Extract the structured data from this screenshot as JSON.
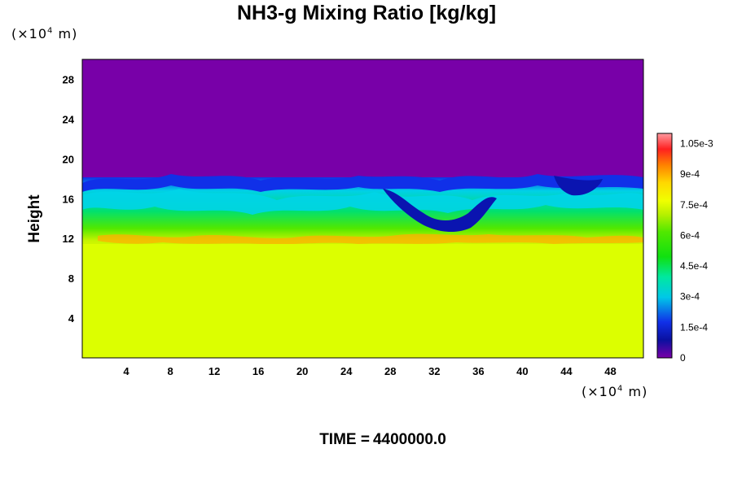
{
  "chart_data": {
    "type": "heatmap",
    "title": "NH3-g Mixing Ratio [kg/kg]",
    "ylabel": "Height",
    "x_unit_label": "(×10",
    "x_unit_exp": "4",
    "x_unit_tail": " m)",
    "y_unit_label": "(×10",
    "y_unit_exp": "4",
    "y_unit_tail": " m)",
    "xlim": [
      0,
      51
    ],
    "ylim": [
      0,
      30
    ],
    "x_ticks": [
      "4",
      "8",
      "12",
      "16",
      "20",
      "24",
      "28",
      "32",
      "36",
      "40",
      "44",
      "48"
    ],
    "y_ticks": [
      "4",
      "8",
      "12",
      "16",
      "20",
      "24",
      "28"
    ],
    "colorbar": {
      "range": [
        0,
        0.0011
      ],
      "tick_labels": [
        "0",
        "1.5e-4",
        "3e-4",
        "4.5e-4",
        "6e-4",
        "7.5e-4",
        "9e-4",
        "1.05e-3"
      ],
      "tick_values": [
        0,
        0.00015,
        0.0003,
        0.00045,
        0.0006,
        0.00075,
        0.0009,
        0.00105
      ]
    },
    "field_summary": {
      "lower_layer": {
        "height_range": [
          0,
          11
        ],
        "value": 0.00079
      },
      "mixing_layer": {
        "height_range": [
          11,
          18
        ],
        "value_range": [
          0.0001,
          0.00095
        ]
      },
      "upper_layer": {
        "height_range": [
          18,
          30
        ],
        "value": 0.0
      }
    },
    "time_label": "TIME =",
    "time_value": "4400000.0"
  },
  "colors": {
    "upper_layer": "#7800a8",
    "lower_layer": "#dcff00",
    "colorbar_stops": [
      "#7800a8",
      "#1020d8",
      "#00c8e0",
      "#00e080",
      "#30e000",
      "#a0f000",
      "#e8ff00",
      "#ffd000",
      "#ff6000",
      "#ff2020",
      "#ff9090"
    ]
  }
}
